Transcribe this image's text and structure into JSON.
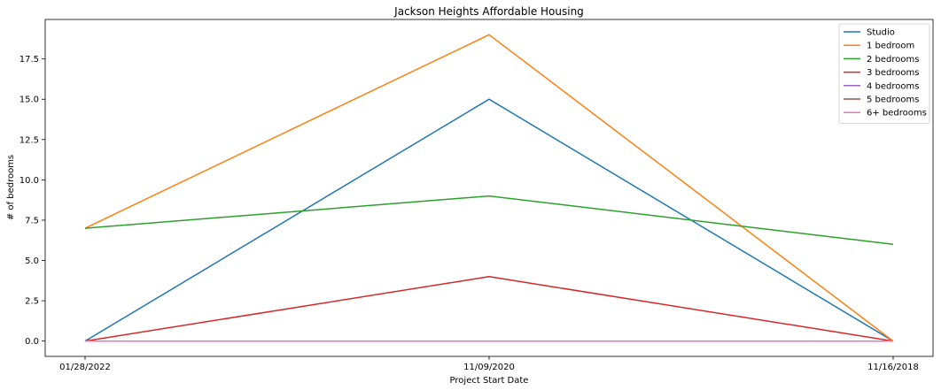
{
  "chart_data": {
    "type": "line",
    "title": "Jackson Heights Affordable Housing",
    "xlabel": "Project Start Date",
    "ylabel": "# of bedrooms",
    "categories": [
      "01/28/2022",
      "11/09/2020",
      "11/16/2018"
    ],
    "ylim": [
      -0.95,
      19.95
    ],
    "yticks": [
      "0.0",
      "2.5",
      "5.0",
      "7.5",
      "10.0",
      "12.5",
      "15.0",
      "17.5"
    ],
    "grid": false,
    "legend_position": "top-right",
    "series": [
      {
        "name": "Studio",
        "values": [
          0,
          15,
          0
        ],
        "color": "#1f77b4"
      },
      {
        "name": "1 bedroom",
        "values": [
          7,
          19,
          0
        ],
        "color": "#ff7f0e"
      },
      {
        "name": "2 bedrooms",
        "values": [
          7,
          9,
          6
        ],
        "color": "#2ca02c"
      },
      {
        "name": "3 bedrooms",
        "values": [
          0,
          4,
          0
        ],
        "color": "#d62728"
      },
      {
        "name": "4 bedrooms",
        "values": [
          0,
          0,
          0
        ],
        "color": "#9467bd"
      },
      {
        "name": "5 bedrooms",
        "values": [
          0,
          0,
          0
        ],
        "color": "#8c564b"
      },
      {
        "name": "6+ bedrooms",
        "values": [
          0,
          0,
          0
        ],
        "color": "#e377c2"
      }
    ]
  }
}
